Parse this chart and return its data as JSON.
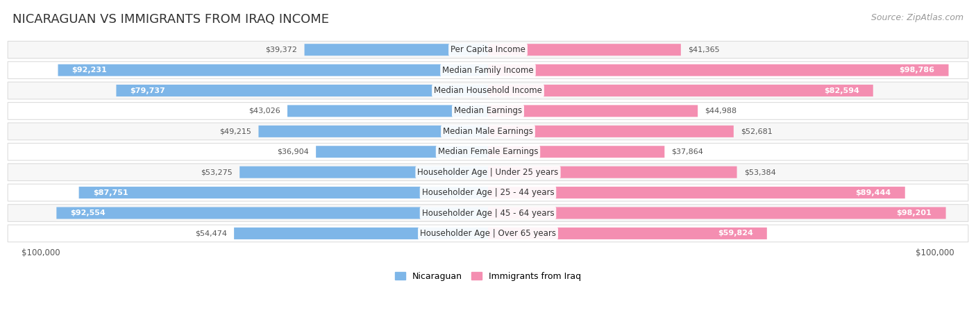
{
  "title": "NICARAGUAN VS IMMIGRANTS FROM IRAQ INCOME",
  "source": "Source: ZipAtlas.com",
  "categories": [
    "Per Capita Income",
    "Median Family Income",
    "Median Household Income",
    "Median Earnings",
    "Median Male Earnings",
    "Median Female Earnings",
    "Householder Age | Under 25 years",
    "Householder Age | 25 - 44 years",
    "Householder Age | 45 - 64 years",
    "Householder Age | Over 65 years"
  ],
  "nicaraguan_values": [
    39372,
    92231,
    79737,
    43026,
    49215,
    36904,
    53275,
    87751,
    92554,
    54474
  ],
  "iraq_values": [
    41365,
    98786,
    82594,
    44988,
    52681,
    37864,
    53384,
    89444,
    98201,
    59824
  ],
  "max_value": 100000,
  "nicaraguan_color": "#7EB6E8",
  "iraq_color_light": "#F5A8C5",
  "iraq_color_dark": "#EE7FAA",
  "nicaraguan_color_dark": "#5A9FD4",
  "iraq_color": "#F48EB1",
  "nicaraguan_label": "Nicaraguan",
  "iraq_label": "Immigrants from Iraq",
  "axis_label_left": "$100,000",
  "axis_label_right": "$100,000",
  "bar_height": 0.58,
  "bg_color": "#FFFFFF",
  "row_color_light": "#F7F7F7",
  "row_color_white": "#FFFFFF",
  "label_color_inside": "#FFFFFF",
  "label_color_outside": "#555555",
  "title_fontsize": 13,
  "source_fontsize": 9,
  "category_fontsize": 8.5,
  "value_fontsize": 8,
  "legend_fontsize": 9,
  "axis_fontsize": 8.5,
  "inside_threshold": 55000
}
